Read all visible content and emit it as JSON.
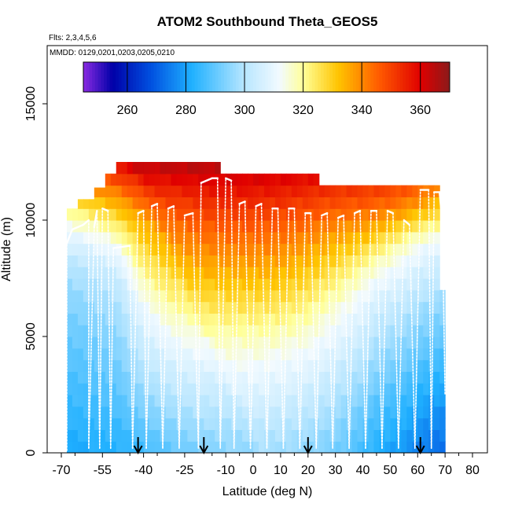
{
  "chart_data": {
    "type": "heatmap",
    "title": "ATOM2 Southbound Theta_GEOS5",
    "notes": [
      "Flts: 2,3,4,5,6",
      "MMDD: 0129,0201,0203,0205,0210"
    ],
    "xlabel": "Latitude (deg N)",
    "ylabel": "Altitude (m)",
    "xlim": [
      -70,
      80
    ],
    "ylim": [
      0,
      17500
    ],
    "x_ticks": [
      -70,
      -55,
      -40,
      -25,
      -10,
      0,
      10,
      20,
      30,
      40,
      50,
      60,
      70,
      80
    ],
    "x_tick_labels": [
      "-70",
      "-55",
      "-40",
      "-25",
      "-10",
      "0",
      "10",
      "20",
      "30",
      "40",
      "50",
      "60",
      "70",
      "80"
    ],
    "y_ticks": [
      0,
      5000,
      10000,
      15000
    ],
    "y_tick_labels": [
      "0",
      "5000",
      "10000",
      "15000"
    ],
    "colorbar": {
      "range": [
        245,
        370
      ],
      "ticks": [
        260,
        280,
        300,
        320,
        340,
        360
      ],
      "tick_labels": [
        "260",
        "280",
        "300",
        "320",
        "340",
        "360"
      ],
      "stops": [
        {
          "value": 245,
          "color": "#8a2be2"
        },
        {
          "value": 255,
          "color": "#0000a8"
        },
        {
          "value": 268,
          "color": "#0050e0"
        },
        {
          "value": 282,
          "color": "#1fb0ff"
        },
        {
          "value": 300,
          "color": "#b8e6ff"
        },
        {
          "value": 312,
          "color": "#f2faff"
        },
        {
          "value": 320,
          "color": "#ffff99"
        },
        {
          "value": 332,
          "color": "#ffc400"
        },
        {
          "value": 346,
          "color": "#ff5a00"
        },
        {
          "value": 360,
          "color": "#e00000"
        },
        {
          "value": 370,
          "color": "#8b1a1a"
        }
      ]
    },
    "top_extent": [
      {
        "x0": -68,
        "x1": -63,
        "top": 10500
      },
      {
        "x0": -63,
        "x1": -58,
        "top": 10900
      },
      {
        "x0": -58,
        "x1": -53,
        "top": 11400
      },
      {
        "x0": -53,
        "x1": -50,
        "top": 12000
      },
      {
        "x0": -50,
        "x1": -12,
        "top": 12500
      },
      {
        "x0": -12,
        "x1": -9,
        "top": 12000
      },
      {
        "x0": -9,
        "x1": 25,
        "top": 12000
      },
      {
        "x0": 25,
        "x1": 69,
        "top": 11500
      },
      {
        "x0": 69,
        "x1": 71,
        "top": 7000
      }
    ],
    "theta_profile": {
      "altitudes": [
        0,
        1000,
        2000,
        3000,
        4000,
        5000,
        6000,
        7000,
        8000,
        9000,
        10000,
        11000,
        12000,
        12500
      ],
      "latitudes": [
        -68,
        -60,
        -50,
        -45,
        -40,
        -30,
        -20,
        -10,
        0,
        10,
        20,
        30,
        40,
        45,
        50,
        55,
        60,
        65,
        70
      ],
      "values": [
        [
          283,
          284,
          285,
          286,
          288,
          292,
          295,
          297,
          298,
          297,
          295,
          292,
          286,
          282,
          280,
          278,
          275,
          273,
          272
        ],
        [
          285,
          286,
          287,
          289,
          292,
          296,
          299,
          300,
          301,
          300,
          298,
          295,
          289,
          285,
          283,
          281,
          278,
          276,
          275
        ],
        [
          287,
          288,
          290,
          293,
          296,
          300,
          303,
          304,
          305,
          304,
          302,
          298,
          292,
          288,
          286,
          284,
          281,
          279,
          278
        ],
        [
          289,
          290,
          292,
          296,
          300,
          305,
          307,
          308,
          309,
          308,
          306,
          302,
          296,
          292,
          290,
          288,
          285,
          283,
          282
        ],
        [
          291,
          292,
          295,
          299,
          304,
          309,
          312,
          313,
          313,
          312,
          310,
          306,
          300,
          296,
          294,
          292,
          289,
          287,
          286
        ],
        [
          293,
          294,
          297,
          302,
          308,
          314,
          317,
          318,
          318,
          317,
          315,
          310,
          304,
          300,
          298,
          296,
          293,
          291,
          290
        ],
        [
          295,
          297,
          300,
          305,
          312,
          320,
          323,
          324,
          324,
          323,
          320,
          314,
          308,
          304,
          302,
          300,
          297,
          295,
          294
        ],
        [
          298,
          300,
          303,
          310,
          318,
          326,
          329,
          330,
          330,
          329,
          326,
          320,
          313,
          309,
          307,
          305,
          302,
          300,
          299
        ],
        [
          302,
          304,
          308,
          316,
          325,
          332,
          335,
          336,
          336,
          335,
          332,
          327,
          320,
          316,
          313,
          310,
          307,
          305,
          304
        ],
        [
          309,
          311,
          316,
          324,
          332,
          338,
          341,
          342,
          342,
          341,
          338,
          334,
          330,
          326,
          322,
          318,
          314,
          311,
          310
        ],
        [
          318,
          322,
          328,
          333,
          338,
          344,
          347,
          348,
          348,
          347,
          345,
          342,
          340,
          338,
          335,
          332,
          328,
          325,
          323
        ],
        [
          330,
          335,
          340,
          345,
          349,
          352,
          354,
          355,
          355,
          354,
          352,
          350,
          349,
          348,
          347,
          345,
          342,
          338,
          335
        ],
        [
          345,
          350,
          355,
          358,
          360,
          361,
          362,
          362,
          362,
          361,
          360,
          358,
          356,
          355,
          354,
          352,
          350,
          348,
          346
        ],
        [
          352,
          357,
          362,
          364,
          365,
          366,
          366,
          366,
          366,
          365,
          364,
          362,
          360,
          358,
          357,
          355,
          353,
          351,
          349
        ]
      ]
    },
    "flight_track": [
      [
        -68,
        100
      ],
      [
        -68,
        9000
      ],
      [
        -66,
        9600
      ],
      [
        -62,
        9800
      ],
      [
        -60,
        10000
      ],
      [
        -60,
        200
      ],
      [
        -58,
        9700
      ],
      [
        -57,
        10400
      ],
      [
        -56,
        200
      ],
      [
        -55,
        10500
      ],
      [
        -53,
        10400
      ],
      [
        -52,
        200
      ],
      [
        -51,
        8800
      ],
      [
        -45,
        8900
      ],
      [
        -44,
        200
      ],
      [
        -42,
        10300
      ],
      [
        -40,
        10400
      ],
      [
        -39,
        200
      ],
      [
        -37,
        10600
      ],
      [
        -35,
        10700
      ],
      [
        -33,
        200
      ],
      [
        -31,
        10500
      ],
      [
        -29,
        10600
      ],
      [
        -27,
        200
      ],
      [
        -25,
        10200
      ],
      [
        -22,
        10300
      ],
      [
        -20,
        200
      ],
      [
        -19,
        11600
      ],
      [
        -15,
        11800
      ],
      [
        -13,
        11800
      ],
      [
        -12,
        200
      ],
      [
        -10,
        11800
      ],
      [
        -8,
        11700
      ],
      [
        -7,
        200
      ],
      [
        -5,
        10700
      ],
      [
        -3,
        10800
      ],
      [
        -1,
        200
      ],
      [
        1,
        10600
      ],
      [
        3,
        10700
      ],
      [
        5,
        200
      ],
      [
        7,
        10500
      ],
      [
        9,
        10500
      ],
      [
        11,
        200
      ],
      [
        13,
        10500
      ],
      [
        15,
        10500
      ],
      [
        17,
        200
      ],
      [
        19,
        10300
      ],
      [
        21,
        10300
      ],
      [
        23,
        200
      ],
      [
        25,
        10200
      ],
      [
        27,
        10300
      ],
      [
        29,
        200
      ],
      [
        31,
        10100
      ],
      [
        33,
        10200
      ],
      [
        35,
        200
      ],
      [
        37,
        10300
      ],
      [
        39,
        10400
      ],
      [
        41,
        200
      ],
      [
        43,
        10400
      ],
      [
        45,
        10400
      ],
      [
        47,
        200
      ],
      [
        49,
        10400
      ],
      [
        51,
        10300
      ],
      [
        53,
        200
      ],
      [
        55,
        10000
      ],
      [
        57,
        9800
      ],
      [
        59,
        200
      ],
      [
        61,
        11300
      ],
      [
        64,
        11300
      ],
      [
        65,
        200
      ],
      [
        66,
        11200
      ],
      [
        68,
        11200
      ],
      [
        69,
        9900
      ],
      [
        70,
        2500
      ]
    ],
    "arrows_lat": [
      -42,
      -18,
      20,
      61
    ]
  }
}
